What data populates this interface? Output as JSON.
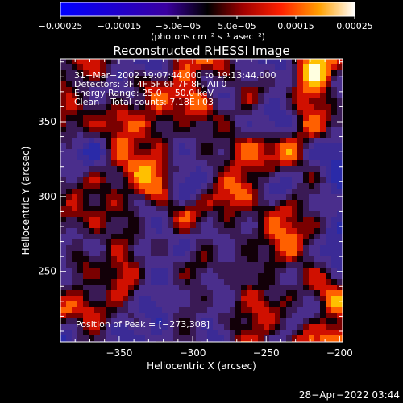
{
  "chart_data": {
    "type": "heatmap",
    "title": "Reconstructed RHESSI Image",
    "xlabel": "Heliocentric X (arcsec)",
    "ylabel": "Heliocentric Y (arcsec)",
    "xlim": [
      -390,
      -198
    ],
    "ylim": [
      203,
      392
    ],
    "x_ticks": [
      {
        "value": -350,
        "label": "−350"
      },
      {
        "value": -300,
        "label": "−300"
      },
      {
        "value": -250,
        "label": "−250"
      },
      {
        "value": -200,
        "label": "−200"
      }
    ],
    "y_ticks": [
      {
        "value": 250,
        "label": "250"
      },
      {
        "value": 300,
        "label": "300"
      },
      {
        "value": 350,
        "label": "350"
      }
    ],
    "colorbar": {
      "range": [
        -0.00025,
        0.00025
      ],
      "unit_label": "(photons cm⁻² s⁻¹ asec⁻²)",
      "ticks": [
        {
          "value": -0.00025,
          "label": "−0.00025"
        },
        {
          "value": -0.00015,
          "label": "−0.00015"
        },
        {
          "value": -5e-05,
          "label": "−5.0e−05"
        },
        {
          "value": 5e-05,
          "label": "5.0e−05"
        },
        {
          "value": 0.00015,
          "label": "0.00015"
        },
        {
          "value": 0.00025,
          "label": "0.00025"
        }
      ]
    },
    "annotations": {
      "time_range": "31−Mar−2002 19:07:44.000 to 19:13:44.000",
      "detectors": "Detectors: 3F 4F 5F 6F 7F 8F, All 0",
      "energy_range": "Energy Range: 25.0 − 50.0 keV",
      "method_counts": "Clean    Total counts: 7.18E+03",
      "peak": "Position of Peak = [−273,308]"
    },
    "peak_position": [
      -273,
      308
    ],
    "timestamp": "28−Apr−2022 03:44"
  }
}
